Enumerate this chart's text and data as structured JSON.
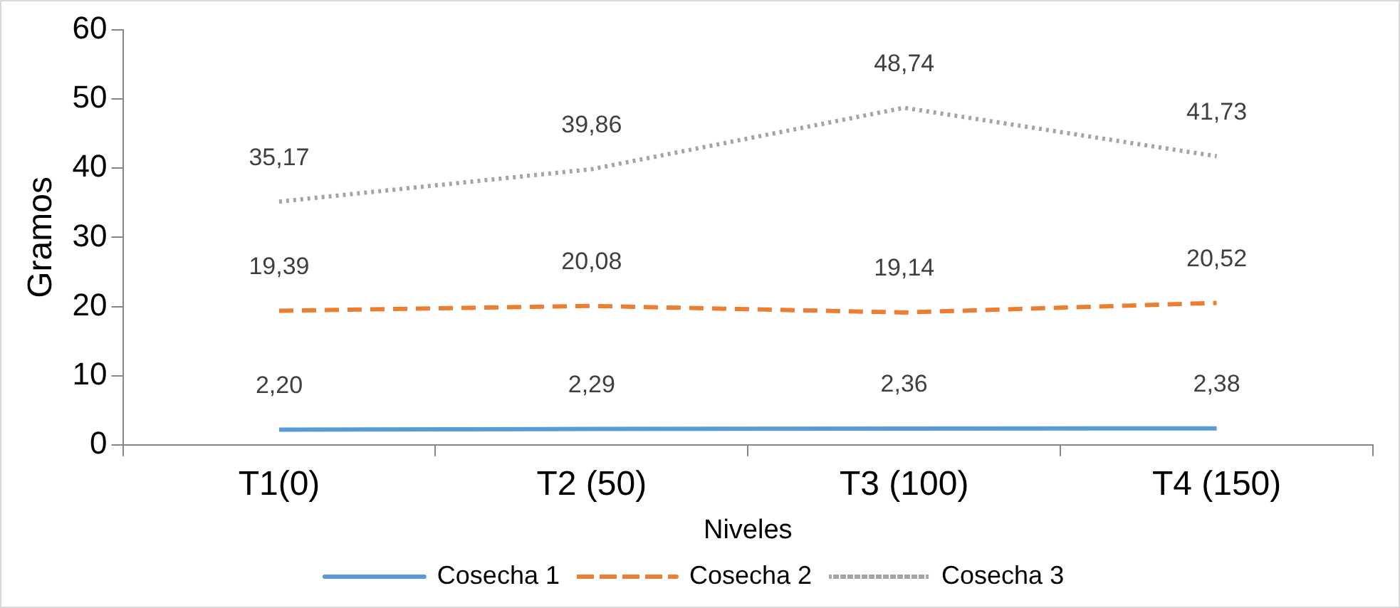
{
  "chart_data": {
    "type": "line",
    "ylabel": "Gramos",
    "xlabel": "Niveles",
    "categories": [
      "T1(0)",
      "T2 (50)",
      "T3 (100)",
      "T4 (150)"
    ],
    "ylim": [
      0,
      60
    ],
    "yticks": [
      0,
      10,
      20,
      30,
      40,
      50,
      60
    ],
    "grid": false,
    "legend": "bottom",
    "marker": "none",
    "series": [
      {
        "name": "Cosecha 1",
        "color": "#5b9bd5",
        "line_style": "solid",
        "values": [
          2.2,
          2.29,
          2.36,
          2.38
        ],
        "value_labels": [
          "2,20",
          "2,29",
          "2,36",
          "2,38"
        ]
      },
      {
        "name": "Cosecha 2",
        "color": "#ed7d31",
        "line_style": "dashed",
        "values": [
          19.39,
          20.08,
          19.14,
          20.52
        ],
        "value_labels": [
          "19,39",
          "20,08",
          "19,14",
          "20,52"
        ]
      },
      {
        "name": "Cosecha 3",
        "color": "#a5a5a5",
        "line_style": "dotted",
        "values": [
          35.17,
          39.86,
          48.74,
          41.73
        ],
        "value_labels": [
          "35,17",
          "39,86",
          "48,74",
          "41,73"
        ]
      }
    ]
  }
}
